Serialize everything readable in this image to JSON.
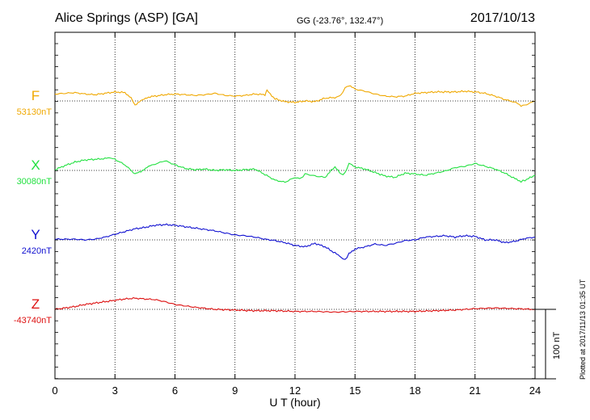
{
  "header": {
    "station": "Alice Springs (ASP)  [GA]",
    "coords": "GG (-23.76°, 132.47°)",
    "date": "2017/10/13"
  },
  "footer_note": "Plotted at 2017/11/13 01:35 UT",
  "chart_data": {
    "type": "line",
    "title": "Alice Springs (ASP)  [GA]",
    "xlabel": "U T (hour)",
    "xlim": [
      0,
      24
    ],
    "xticks": [
      0,
      3,
      6,
      9,
      12,
      15,
      18,
      21,
      24
    ],
    "grid": true,
    "scale_bar": {
      "label": "100 nT",
      "value_nT": 100
    },
    "series": [
      {
        "name": "F",
        "baseline_label": "53130nT",
        "baseline_nT": 53130,
        "color": "#f0a800",
        "x": [
          0,
          0.5,
          1,
          1.5,
          2,
          2.5,
          3,
          3.5,
          3.8,
          4,
          4.3,
          4.6,
          5,
          5.5,
          6,
          6.5,
          7,
          7.5,
          8,
          8.5,
          9,
          9.5,
          10,
          10.5,
          10.6,
          11,
          11.5,
          12,
          12.5,
          13,
          13.5,
          14,
          14.3,
          14.5,
          14.7,
          15,
          15.5,
          16,
          16.5,
          17,
          17.5,
          18,
          19,
          20,
          20.5,
          21,
          21.5,
          22,
          22.5,
          23,
          23.3,
          23.5,
          24
        ],
        "values": [
          53140,
          53141,
          53142,
          53140,
          53139,
          53141,
          53143,
          53142,
          53135,
          53124,
          53130,
          53135,
          53137,
          53139,
          53140,
          53139,
          53138,
          53139,
          53141,
          53138,
          53137,
          53138,
          53140,
          53139,
          53145,
          53133,
          53129,
          53128,
          53130,
          53129,
          53134,
          53135,
          53138,
          53149,
          53152,
          53147,
          53144,
          53140,
          53137,
          53136,
          53137,
          53141,
          53143,
          53143,
          53144,
          53143,
          53141,
          53137,
          53132,
          53128,
          53123,
          53124,
          53130
        ]
      },
      {
        "name": "X",
        "baseline_label": "30080nT",
        "baseline_nT": 30080,
        "color": "#22e040",
        "x": [
          0,
          0.5,
          1,
          1.5,
          2,
          2.5,
          2.8,
          3,
          3.5,
          4,
          4.3,
          4.6,
          5,
          5.5,
          6,
          6.5,
          7,
          7.5,
          8,
          8.5,
          9,
          9.5,
          10,
          10.5,
          11,
          11.5,
          12,
          12.3,
          12.5,
          13,
          13.5,
          13.8,
          14,
          14.3,
          14.5,
          14.7,
          15,
          15.5,
          16,
          16.5,
          17,
          17.5,
          18,
          18.5,
          19,
          19.5,
          20,
          20.5,
          21,
          21.5,
          22,
          22.5,
          23,
          23.3,
          23.5,
          24
        ],
        "values": [
          30081,
          30087,
          30092,
          30095,
          30096,
          30097,
          30098,
          30096,
          30088,
          30075,
          30078,
          30085,
          30089,
          30094,
          30088,
          30083,
          30081,
          30082,
          30080,
          30081,
          30080,
          30081,
          30082,
          30074,
          30066,
          30063,
          30070,
          30068,
          30075,
          30072,
          30070,
          30080,
          30085,
          30074,
          30076,
          30090,
          30085,
          30082,
          30077,
          30072,
          30070,
          30076,
          30075,
          30073,
          30076,
          30079,
          30084,
          30086,
          30090,
          30086,
          30082,
          30076,
          30068,
          30064,
          30066,
          30073
        ]
      },
      {
        "name": "Y",
        "baseline_label": "2420nT",
        "baseline_nT": 2420,
        "color": "#1010d0",
        "x": [
          0,
          0.5,
          1,
          1.5,
          2,
          2.5,
          3,
          3.5,
          4,
          4.5,
          5,
          5.5,
          6,
          6.5,
          7,
          7.5,
          8,
          8.5,
          9,
          9.5,
          10,
          10.5,
          11,
          11.5,
          12,
          12.5,
          13,
          13.5,
          14,
          14.3,
          14.5,
          14.7,
          15,
          15.5,
          16,
          16.5,
          17,
          17.5,
          18,
          18.5,
          19,
          19.5,
          20,
          20.5,
          21,
          21.5,
          22,
          22.5,
          23,
          23.5,
          24
        ],
        "values": [
          2421,
          2421,
          2421,
          2420,
          2421,
          2424,
          2428,
          2432,
          2436,
          2438,
          2441,
          2442,
          2441,
          2439,
          2437,
          2435,
          2433,
          2430,
          2427,
          2426,
          2424,
          2421,
          2419,
          2416,
          2412,
          2410,
          2415,
          2410,
          2401,
          2395,
          2391,
          2400,
          2407,
          2410,
          2414,
          2412,
          2415,
          2419,
          2420,
          2424,
          2425,
          2426,
          2424,
          2426,
          2425,
          2420,
          2420,
          2416,
          2418,
          2422,
          2424
        ]
      },
      {
        "name": "Z",
        "baseline_label": "-43740nT",
        "baseline_nT": -43740,
        "color": "#dd1010",
        "x": [
          0,
          0.5,
          1,
          1.5,
          2,
          2.5,
          3,
          3.5,
          4,
          4.5,
          5,
          5.5,
          6,
          6.5,
          7,
          8,
          9,
          10,
          11,
          12,
          13,
          14,
          15,
          16,
          17,
          18,
          19,
          20,
          21,
          22,
          23,
          24
        ],
        "values": [
          -43740,
          -43738,
          -43736,
          -43733,
          -43731,
          -43729,
          -43727,
          -43725,
          -43724,
          -43725,
          -43726,
          -43729,
          -43733,
          -43735,
          -43737,
          -43740,
          -43741,
          -43742,
          -43742,
          -43743,
          -43743,
          -43744,
          -43743,
          -43743,
          -43743,
          -43743,
          -43742,
          -43741,
          -43739,
          -43738,
          -43739,
          -43740
        ]
      }
    ]
  }
}
